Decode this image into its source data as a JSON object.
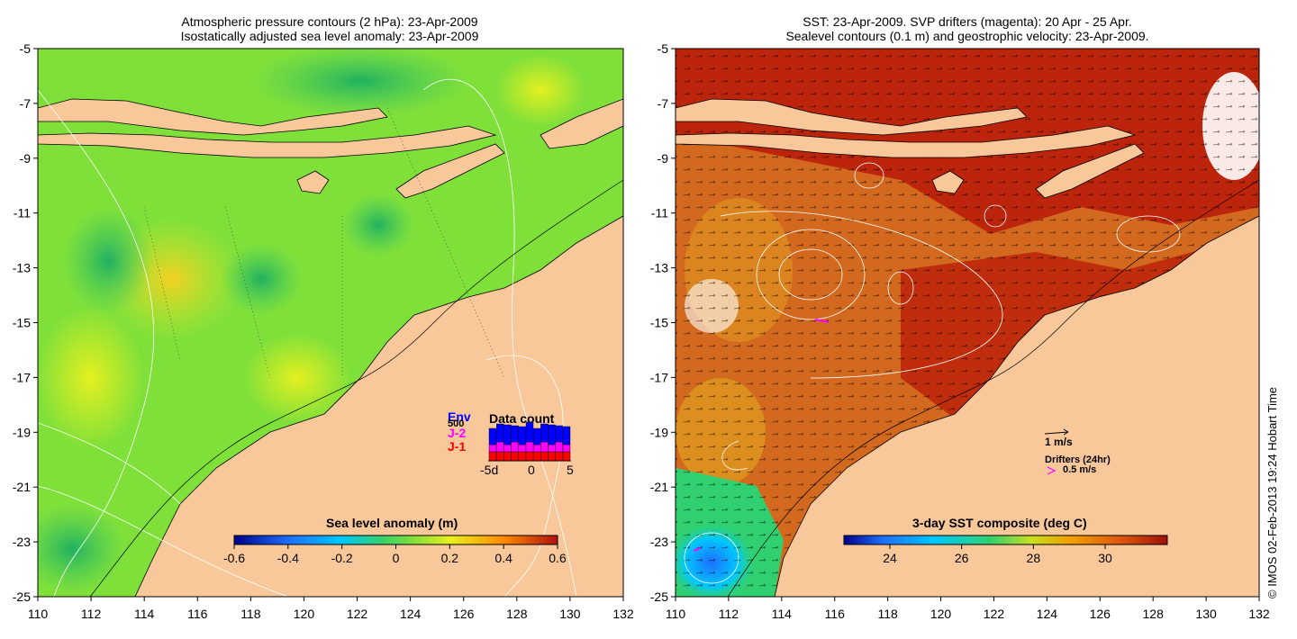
{
  "left_panel": {
    "title_line1": "Atmospheric pressure contours (2 hPa): 23-Apr-2009",
    "title_line2": "Isostatically adjusted sea level anomaly: 23-Apr-2009",
    "colorbar_title": "Sea level anomaly (m)",
    "colorbar_ticks": [
      "-0.6",
      "-0.4",
      "-0.2",
      "0",
      "0.2",
      "0.4",
      "0.6"
    ],
    "data_count": {
      "title": "Data count",
      "legend": [
        "Env",
        "J-2",
        "J-1"
      ],
      "extra_label": "500",
      "axis_ticks": [
        "-5d",
        "0",
        "5"
      ],
      "colors": {
        "Env": "#0000ff",
        "J-2": "#ff00ff",
        "J-1": "#ff0000"
      }
    }
  },
  "right_panel": {
    "title_line1": "SST: 23-Apr-2009. SVP drifters (magenta): 20 Apr - 25 Apr.",
    "title_line2": "Sealevel contours (0.1 m) and geostrophic velocity: 23-Apr-2009.",
    "colorbar_title": "3-day SST composite (deg C)",
    "colorbar_ticks": [
      "24",
      "26",
      "28",
      "30"
    ],
    "vector_legend": "1 m/s",
    "drifters_label": "Drifters (24hr)",
    "drifters_speed": "0.5 m/s",
    "drifter_color": "#ff00ff"
  },
  "axes": {
    "lat_ticks": [
      "-5",
      "-7",
      "-9",
      "-11",
      "-13",
      "-15",
      "-17",
      "-19",
      "-21",
      "-23",
      "-25"
    ],
    "lon_ticks": [
      "110",
      "112",
      "114",
      "116",
      "118",
      "120",
      "122",
      "124",
      "126",
      "128",
      "130",
      "132"
    ]
  },
  "credit": "© IMOS 02-Feb-2013 19:24 Hobart Time",
  "colors": {
    "land": "#f9c89a",
    "sla_background": "#7fe03a",
    "sst_background": "#d2691e",
    "sst_warm": "#aa1d08"
  }
}
